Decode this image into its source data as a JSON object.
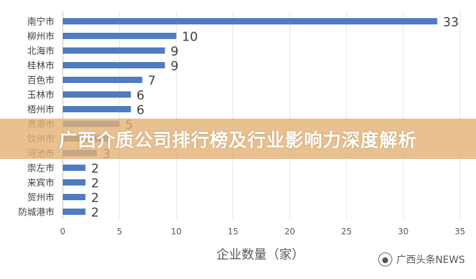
{
  "banner": {
    "title": "广西介质公司排行榜及行业影响力深度解析"
  },
  "watermark": {
    "text": "广西头条NEWS",
    "icon": "wechat-icon"
  },
  "chart_data": {
    "type": "bar",
    "orientation": "horizontal",
    "categories": [
      "南宁市",
      "柳州市",
      "北海市",
      "桂林市",
      "百色市",
      "玉林市",
      "梧州市",
      "贵港市",
      "钦州市",
      "河池市",
      "崇左市",
      "来宾市",
      "贺州市",
      "防城港市"
    ],
    "values": [
      33,
      10,
      9,
      9,
      7,
      6,
      6,
      5,
      4,
      3,
      2,
      2,
      2,
      2
    ],
    "value_labels": [
      "33",
      "10",
      "9",
      "9",
      "7",
      "6",
      "6",
      "5",
      "",
      "3",
      "2",
      "2",
      "2",
      "2"
    ],
    "xlabel": "企业数量（家）",
    "xlim": [
      0,
      35
    ],
    "xticks": [
      0,
      5,
      10,
      15,
      20,
      25,
      30,
      35
    ],
    "grid": true,
    "bar_color": "#4F7CC0",
    "axis_color": "#bfbfbf"
  }
}
